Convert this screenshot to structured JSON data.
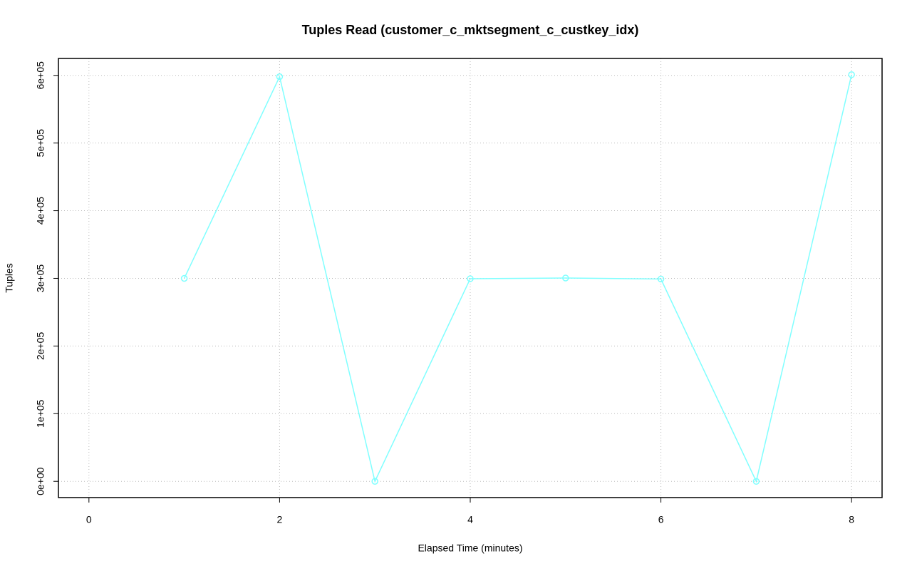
{
  "chart_data": {
    "type": "line",
    "title": "Tuples Read (customer_c_mktsegment_c_custkey_idx)",
    "x_label": "Elapsed Time (minutes)",
    "y_label": "Tuples",
    "x": [
      1,
      2,
      3,
      4,
      5,
      6,
      7,
      8
    ],
    "series": [
      {
        "name": "Tuples",
        "color": "#80ffff",
        "values": [
          300000,
          598000,
          0,
          299500,
          300500,
          299000,
          0,
          601000
        ]
      }
    ],
    "xlim": [
      -0.32,
      8.32
    ],
    "xticks": [
      0,
      2,
      4,
      6,
      8
    ],
    "ylim": [
      -24000,
      625000
    ],
    "yticks": [
      {
        "value": 0,
        "label": "0e+00"
      },
      {
        "value": 100000,
        "label": "1e+05"
      },
      {
        "value": 200000,
        "label": "2e+05"
      },
      {
        "value": 300000,
        "label": "3e+05"
      },
      {
        "value": 400000,
        "label": "4e+05"
      },
      {
        "value": 500000,
        "label": "5e+05"
      },
      {
        "value": 600000,
        "label": "6e+05"
      }
    ],
    "grid": true
  }
}
